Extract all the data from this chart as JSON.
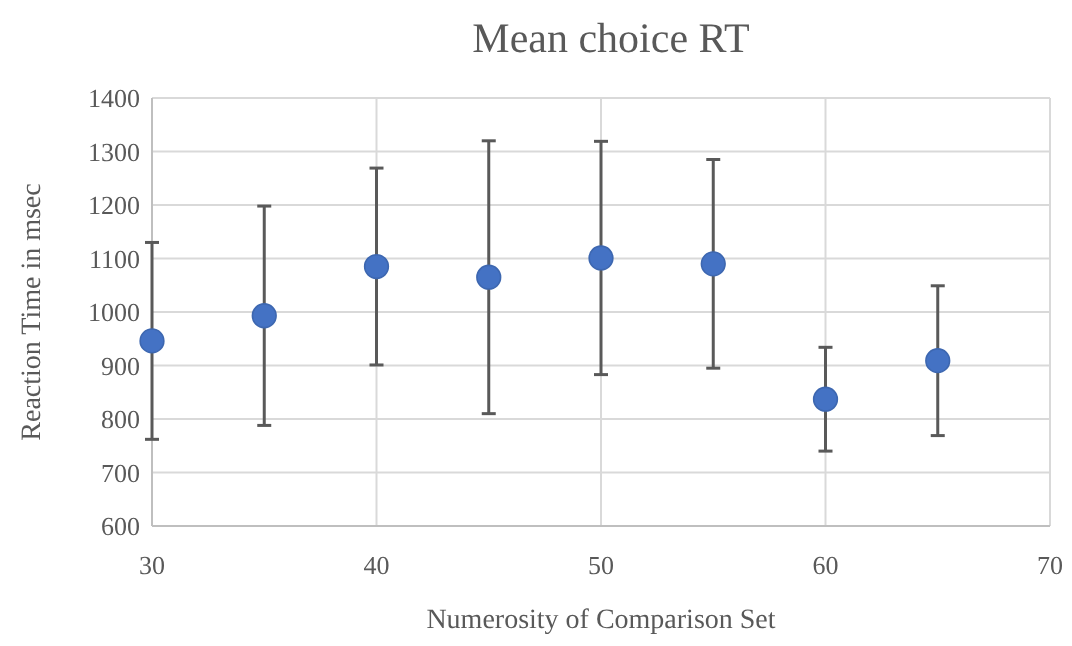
{
  "chart_data": {
    "type": "scatter",
    "title": "Mean choice RT",
    "xlabel": "Numerosity of Comparison Set",
    "ylabel": "Reaction Time in msec",
    "x": [
      30,
      35,
      40,
      45,
      50,
      55,
      60,
      65
    ],
    "values": [
      946,
      993,
      1085,
      1065,
      1101,
      1090,
      837,
      909
    ],
    "errors": [
      184,
      205,
      184,
      255,
      218,
      195,
      97,
      140
    ],
    "color": "#4472c4",
    "marker": "circle",
    "grid": true,
    "xlim": [
      30,
      70
    ],
    "xticks": [
      30,
      40,
      50,
      60,
      70
    ],
    "ylim": [
      600,
      1400
    ],
    "yticks": [
      600,
      700,
      800,
      900,
      1000,
      1100,
      1200,
      1300,
      1400
    ]
  }
}
